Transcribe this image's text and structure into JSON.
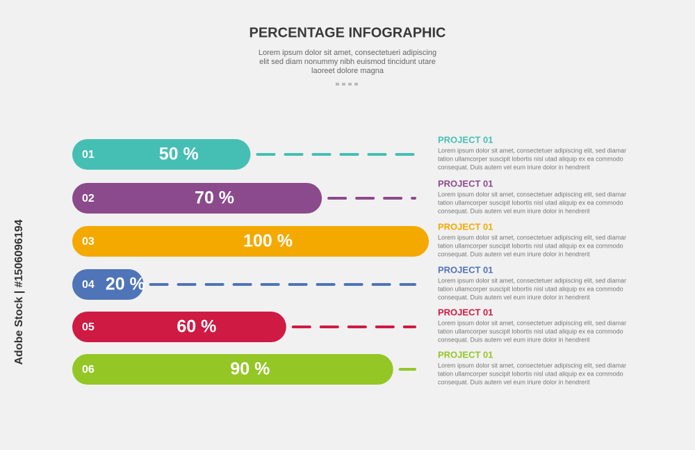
{
  "header": {
    "title": "PERCENTAGE INFOGRAPHIC",
    "subtitle": [
      "Lorem ipsum dolor sit amet, consectetueri adipiscing",
      "elit sed diam nonummy nibh euismod tincidunt utare",
      "laoreet dolore magna"
    ]
  },
  "chart_data": {
    "type": "bar",
    "orientation": "horizontal",
    "categories": [
      "01",
      "02",
      "03",
      "04",
      "05",
      "06"
    ],
    "values": [
      50,
      70,
      100,
      20,
      60,
      90
    ],
    "value_labels": [
      "50 %",
      "70 %",
      "100 %",
      "20 %",
      "60 %",
      "90 %"
    ],
    "colors": [
      "#45bfb4",
      "#8b4a8c",
      "#f4a900",
      "#4f74b8",
      "#cf1a44",
      "#94c626"
    ],
    "xlim": [
      0,
      100
    ]
  },
  "items": [
    {
      "title": "PROJECT 01",
      "lines": [
        "Lorem ipsum dolor sit amet, consectetuer adipiscing elit, sed diamar",
        "tation ullamcorper suscipit lobortis nisl utad aliquip ex ea commodo",
        "consequat. Duis autem vel eum iriure dolor in hendrerit"
      ]
    },
    {
      "title": "PROJECT 01",
      "lines": [
        "Lorem ipsum dolor sit amet, consectetuer adipiscing elit, sed diamar",
        "tation ullamcorper suscipit lobortis nisl utad aliquip ex ea commodo",
        "consequat. Duis autem vel eum iriure dolor in hendrerit"
      ]
    },
    {
      "title": "PROJECT 01",
      "lines": [
        "Lorem ipsum dolor sit amet, consectetuer adipiscing elit, sed diamar",
        "tation ullamcorper suscipit lobortis nisl utad aliquip ex ea commodo",
        "consequat. Duis autem vel eum iriure dolor in hendrerit"
      ]
    },
    {
      "title": "PROJECT 01",
      "lines": [
        "Lorem ipsum dolor sit amet, consectetuer adipiscing elit, sed diamar",
        "tation ullamcorper suscipit lobortis nisl utad aliquip ex ea commodo",
        "consequat. Duis autem vel eum iriure dolor in hendrerit"
      ]
    },
    {
      "title": "PROJECT 01",
      "lines": [
        "Lorem ipsum dolor sit amet, consectetuer adipiscing elit, sed diamar",
        "tation ullamcorper suscipit lobortis nisl utad aliquip ex ea commodo",
        "consequat. Duis autem vel eum iriure dolor in hendrerit"
      ]
    },
    {
      "title": "PROJECT 01",
      "lines": [
        "Lorem ipsum dolor sit amet, consectetuer adipiscing elit, sed diamar",
        "tation ullamcorper suscipit lobortis nisl utad aliquip ex ea commodo",
        "consequat. Duis autem vel eum iriure dolor in hendrerit"
      ]
    }
  ],
  "watermark": "Adobe Stock | #1506096194"
}
